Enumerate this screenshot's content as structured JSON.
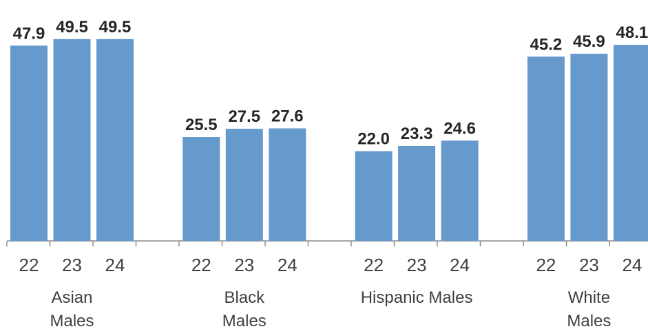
{
  "chart_data": {
    "type": "bar",
    "groups": [
      {
        "label_lines": [
          "Asian",
          "Males"
        ],
        "categories": [
          "22",
          "23",
          "24"
        ],
        "values": [
          47.9,
          49.5,
          49.5
        ],
        "value_labels": [
          "47.9",
          "49.5",
          "49.5"
        ]
      },
      {
        "label_lines": [
          "Black",
          "Males"
        ],
        "categories": [
          "22",
          "23",
          "24"
        ],
        "values": [
          25.5,
          27.5,
          27.6
        ],
        "value_labels": [
          "25.5",
          "27.5",
          "27.6"
        ]
      },
      {
        "label_lines": [
          "Hispanic Males"
        ],
        "categories": [
          "22",
          "23",
          "24"
        ],
        "values": [
          22.0,
          23.3,
          24.6
        ],
        "value_labels": [
          "22.0",
          "23.3",
          "24.6"
        ]
      },
      {
        "label_lines": [
          "White",
          "Males"
        ],
        "categories": [
          "22",
          "23",
          "24"
        ],
        "values": [
          45.2,
          45.9,
          48.1
        ],
        "value_labels": [
          "45.2",
          "45.9",
          "48.1"
        ]
      }
    ],
    "ylim": [
      0,
      52
    ],
    "bar_color": "#6699CC",
    "grid": false,
    "legend": "none"
  }
}
